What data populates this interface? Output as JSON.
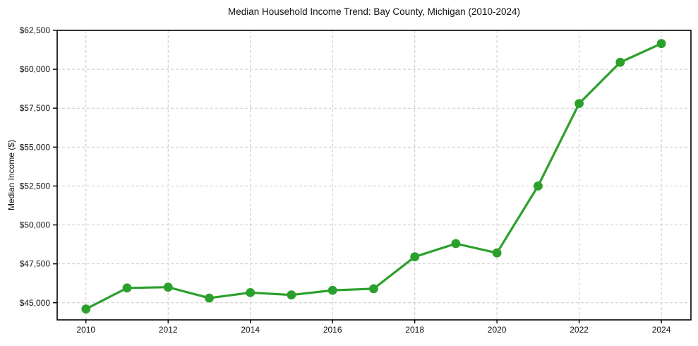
{
  "chart_data": {
    "type": "line",
    "title": "Median Household Income Trend: Bay County, Michigan (2010-2024)",
    "xlabel": "",
    "ylabel": "Median Income ($)",
    "series_name": "Median household income",
    "x": [
      2010,
      2011,
      2012,
      2013,
      2014,
      2015,
      2016,
      2017,
      2018,
      2019,
      2020,
      2021,
      2022,
      2023,
      2024
    ],
    "values": [
      44600,
      45950,
      46000,
      45300,
      45650,
      45500,
      45800,
      45900,
      47950,
      48800,
      48200,
      52500,
      57800,
      60450,
      61650
    ],
    "line_color": "#2ca02c",
    "marker": "circle",
    "marker_color": "#2ca02c",
    "xlim": [
      2009.3,
      2024.72
    ],
    "ylim": [
      43900,
      62500
    ],
    "xticks": {
      "values": [
        2010,
        2012,
        2014,
        2016,
        2018,
        2020,
        2022,
        2024
      ],
      "labels": [
        "2010",
        "2012",
        "2014",
        "2016",
        "2018",
        "2020",
        "2022",
        "2024"
      ]
    },
    "yticks": {
      "values": [
        45000,
        47500,
        50000,
        52500,
        55000,
        57500,
        60000,
        62500
      ],
      "labels": [
        "$45,000",
        "$47,500",
        "$50,000",
        "$52,500",
        "$55,000",
        "$57,500",
        "$60,000",
        "$62,500"
      ]
    },
    "grid": {
      "show": true,
      "style": "dashed",
      "color": "#c9c9c9"
    },
    "legend": "none",
    "background": "#ffffff",
    "text_color": "#111111",
    "spine_color": "#000000"
  }
}
